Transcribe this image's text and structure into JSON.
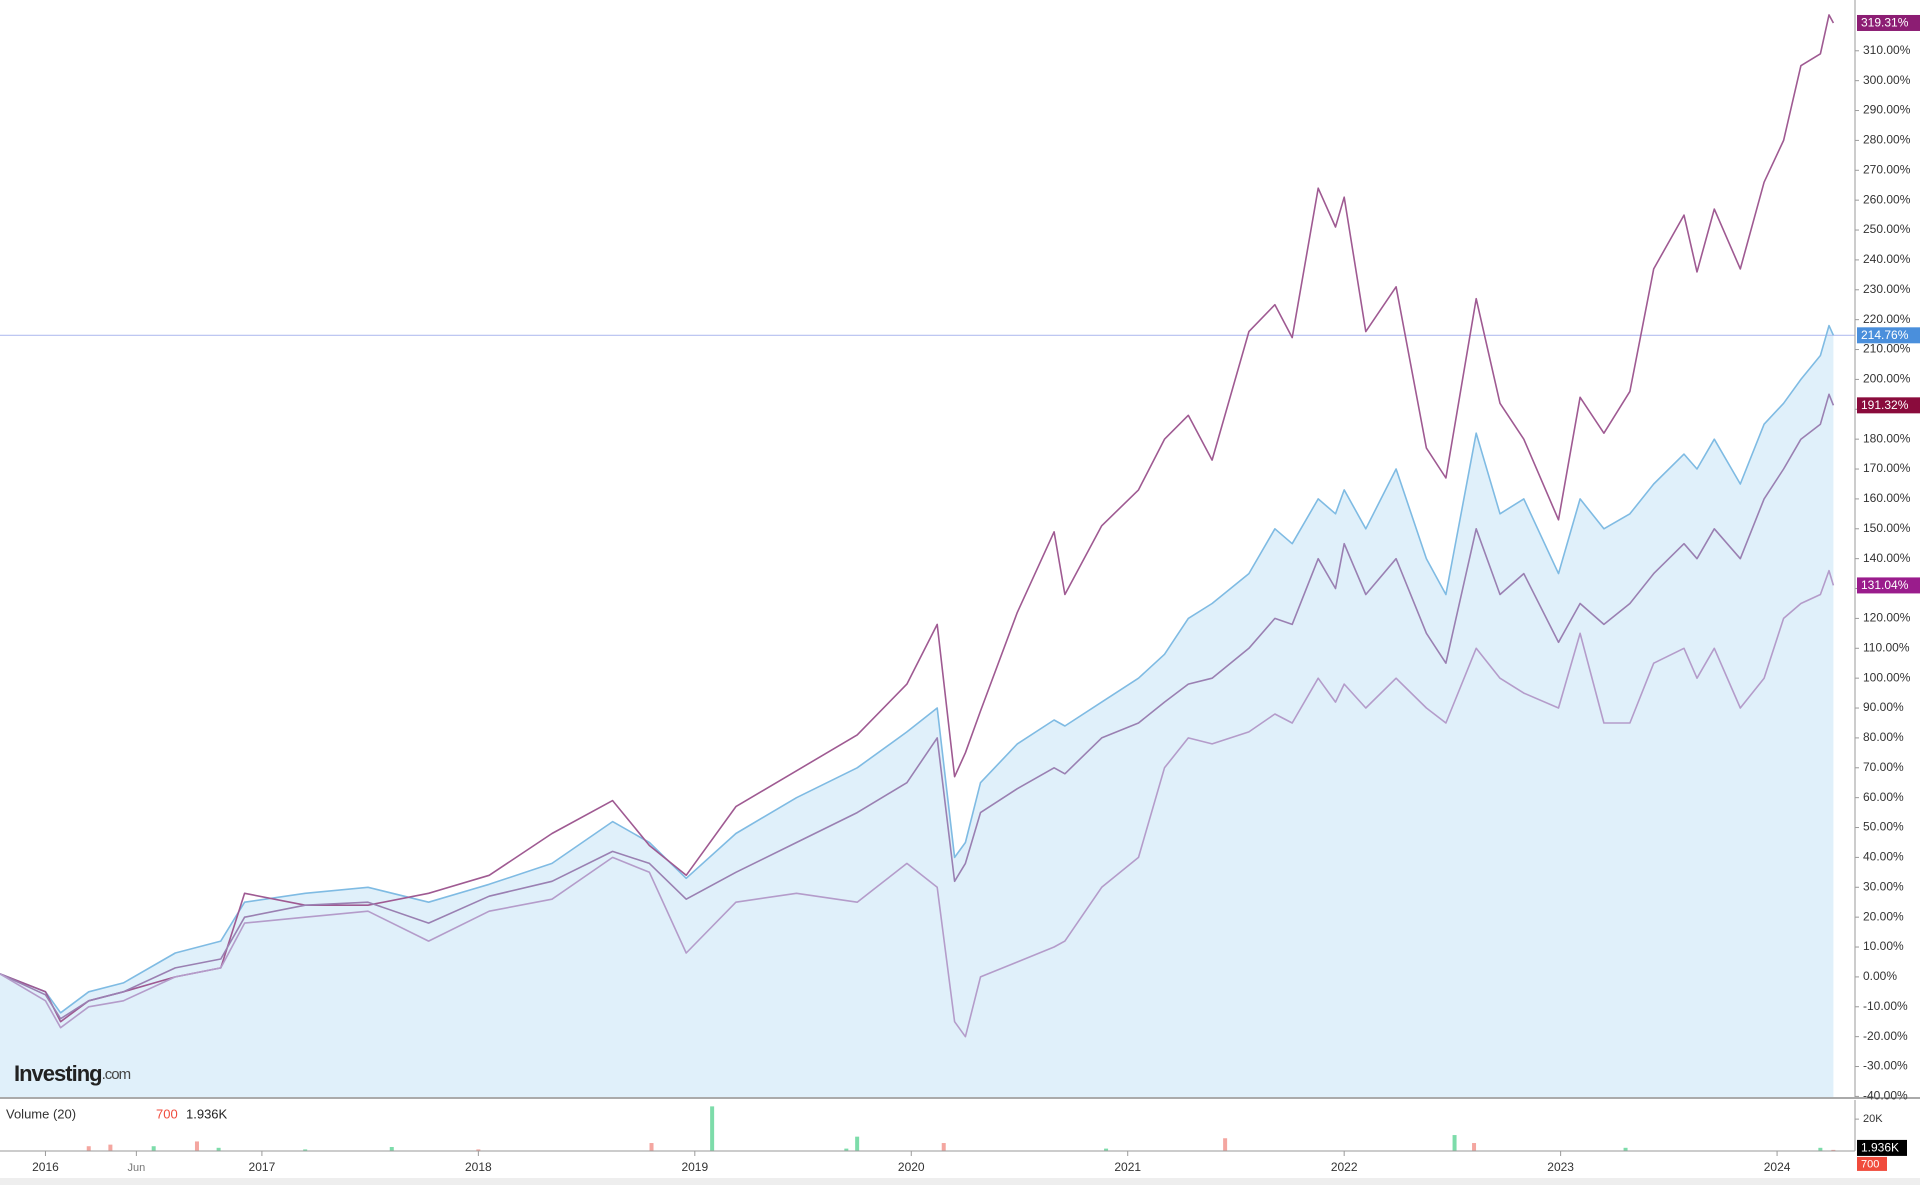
{
  "logo": {
    "name": "Investing",
    "suffix": ".com"
  },
  "chart_data": [
    {
      "type": "line",
      "x": [
        2015.79,
        2016.0,
        2016.07,
        2016.2,
        2016.36,
        2016.6,
        2016.81,
        2016.92,
        2017.2,
        2017.49,
        2017.77,
        2018.05,
        2018.34,
        2018.62,
        2018.79,
        2018.96,
        2019.19,
        2019.47,
        2019.75,
        2019.98,
        2020.12,
        2020.2,
        2020.25,
        2020.32,
        2020.49,
        2020.66,
        2020.71,
        2020.88,
        2021.05,
        2021.17,
        2021.28,
        2021.39,
        2021.56,
        2021.68,
        2021.76,
        2021.88,
        2021.96,
        2022.0,
        2022.1,
        2022.24,
        2022.38,
        2022.47,
        2022.61,
        2022.72,
        2022.83,
        2022.99,
        2023.09,
        2023.2,
        2023.32,
        2023.43,
        2023.57,
        2023.63,
        2023.71,
        2023.83,
        2023.94,
        2024.03,
        2024.11,
        2024.2,
        2024.24,
        2024.26
      ],
      "xlim": [
        2015.79,
        2024.36
      ],
      "ylim": [
        -40.2,
        327
      ],
      "yticks": [
        {
          "value": -40,
          "label": "-40.00%"
        },
        {
          "value": -30,
          "label": "-30.00%"
        },
        {
          "value": -20,
          "label": "-20.00%"
        },
        {
          "value": -10,
          "label": "-10.00%"
        },
        {
          "value": 0,
          "label": "0.00%"
        },
        {
          "value": 10,
          "label": "10.00%"
        },
        {
          "value": 20,
          "label": "20.00%"
        },
        {
          "value": 30,
          "label": "30.00%"
        },
        {
          "value": 40,
          "label": "40.00%"
        },
        {
          "value": 50,
          "label": "50.00%"
        },
        {
          "value": 60,
          "label": "60.00%"
        },
        {
          "value": 70,
          "label": "70.00%"
        },
        {
          "value": 80,
          "label": "80.00%"
        },
        {
          "value": 90,
          "label": "90.00%"
        },
        {
          "value": 100,
          "label": "100.00%"
        },
        {
          "value": 110,
          "label": "110.00%"
        },
        {
          "value": 120,
          "label": "120.00%"
        },
        {
          "value": 130,
          "label": "130.00%"
        },
        {
          "value": 140,
          "label": "140.00%"
        },
        {
          "value": 150,
          "label": "150.00%"
        },
        {
          "value": 160,
          "label": "160.00%"
        },
        {
          "value": 170,
          "label": "170.00%"
        },
        {
          "value": 180,
          "label": "180.00%"
        },
        {
          "value": 190,
          "label": "190.00%"
        },
        {
          "value": 200,
          "label": "200.00%"
        },
        {
          "value": 210,
          "label": "210.00%"
        },
        {
          "value": 220,
          "label": "220.00%"
        },
        {
          "value": 230,
          "label": "230.00%"
        },
        {
          "value": 240,
          "label": "240.00%"
        },
        {
          "value": 250,
          "label": "250.00%"
        },
        {
          "value": 260,
          "label": "260.00%"
        },
        {
          "value": 270,
          "label": "270.00%"
        },
        {
          "value": 280,
          "label": "280.00%"
        },
        {
          "value": 290,
          "label": "290.00%"
        },
        {
          "value": 300,
          "label": "300.00%"
        },
        {
          "value": 310,
          "label": "310.00%"
        }
      ],
      "series": [
        {
          "color": "#7fbbe3",
          "fill": "#e0f0fa",
          "guide_line": "#b4bff0",
          "values": [
            1,
            -5,
            -12,
            -5,
            -2,
            8,
            12,
            25,
            28,
            30,
            25,
            31,
            38,
            52,
            45,
            33,
            48,
            60,
            70,
            82,
            90,
            40,
            45,
            65,
            78,
            86,
            84,
            92,
            100,
            108,
            120,
            125,
            135,
            150,
            145,
            160,
            155,
            163,
            150,
            170,
            140,
            128,
            182,
            155,
            160,
            135,
            160,
            150,
            155,
            165,
            175,
            170,
            180,
            165,
            185,
            192,
            200,
            208,
            218,
            214.76
          ],
          "end_tag": {
            "value": 214.76,
            "label": "214.76%",
            "color": "#4a8fdc"
          }
        },
        {
          "color": "#9f5a92",
          "values": [
            1,
            -5,
            -15,
            -8,
            -5,
            0,
            3,
            28,
            24,
            24,
            28,
            34,
            48,
            59,
            44,
            34,
            57,
            69,
            81,
            98,
            118,
            67,
            75,
            89,
            122,
            149,
            128,
            151,
            163,
            180,
            188,
            173,
            216,
            225,
            214,
            264,
            251,
            261,
            216,
            231,
            177,
            167,
            227,
            192,
            180,
            153,
            194,
            182,
            196,
            237,
            255,
            236,
            257,
            237,
            266,
            280,
            305,
            309,
            322,
            319.31
          ],
          "end_tag": {
            "value": 319.31,
            "label": "319.31%",
            "color": "#8c1d73"
          }
        },
        {
          "color": "#9a80b2",
          "values": [
            1,
            -6,
            -14,
            -8,
            -5,
            3,
            6,
            20,
            24,
            25,
            18,
            27,
            32,
            42,
            38,
            26,
            35,
            45,
            55,
            65,
            80,
            32,
            38,
            55,
            63,
            70,
            68,
            80,
            85,
            92,
            98,
            100,
            110,
            120,
            118,
            140,
            130,
            145,
            128,
            140,
            115,
            105,
            150,
            128,
            135,
            112,
            125,
            118,
            125,
            135,
            145,
            140,
            150,
            140,
            160,
            170,
            180,
            185,
            195,
            191.32
          ],
          "end_tag": {
            "value": 191.32,
            "label": "191.32%",
            "color": "#8a0b3c"
          }
        },
        {
          "color": "#b49cca",
          "values": [
            1,
            -8,
            -17,
            -10,
            -8,
            0,
            3,
            18,
            20,
            22,
            12,
            22,
            26,
            40,
            35,
            8,
            25,
            28,
            25,
            38,
            30,
            -15,
            -20,
            0,
            5,
            10,
            12,
            30,
            40,
            70,
            80,
            78,
            82,
            88,
            85,
            100,
            92,
            98,
            90,
            100,
            90,
            85,
            110,
            100,
            95,
            90,
            115,
            85,
            85,
            105,
            110,
            100,
            110,
            90,
            100,
            120,
            125,
            128,
            136,
            131.04
          ],
          "end_tag": {
            "value": 131.04,
            "label": "131.04%",
            "color": "#9a1c8c"
          }
        }
      ]
    },
    {
      "type": "bar",
      "title": "Volume (20)",
      "x": [
        2016.2,
        2016.3,
        2016.5,
        2016.7,
        2016.8,
        2017.2,
        2017.6,
        2018.0,
        2018.8,
        2019.08,
        2019.7,
        2019.75,
        2020.15,
        2020.9,
        2021.45,
        2022.51,
        2022.6,
        2023.3,
        2024.2,
        2024.26
      ],
      "values": [
        3000,
        4000,
        3000,
        6000,
        2000,
        1000,
        2500,
        1000,
        5000,
        28000,
        1500,
        9000,
        5000,
        1500,
        8000,
        10000,
        5000,
        2000,
        2000,
        700
      ],
      "colors": [
        "#f4a6a0",
        "#f4a6a0",
        "#7ddcaa",
        "#f4a6a0",
        "#7ddcaa",
        "#7ddcaa",
        "#7ddcaa",
        "#f4a6a0",
        "#f4a6a0",
        "#7ddcaa",
        "#7ddcaa",
        "#7ddcaa",
        "#f4a6a0",
        "#7ddcaa",
        "#f4a6a0",
        "#7ddcaa",
        "#f4a6a0",
        "#7ddcaa",
        "#7ddcaa",
        "#f4a6a0"
      ],
      "last_color": "#f04b3c",
      "ma": {
        "value": 1936,
        "label": "1.936K",
        "color": "#000000"
      },
      "xlim": [
        2015.79,
        2024.36
      ],
      "ylim": [
        0,
        32000
      ],
      "yticks": [
        {
          "value": 20000,
          "label": "20K"
        }
      ],
      "xticks": [
        2016,
        {
          "value": 2016.42,
          "label": "Jun"
        },
        2017,
        2018,
        2019,
        2020,
        2021,
        2022,
        2023,
        2024
      ]
    }
  ]
}
